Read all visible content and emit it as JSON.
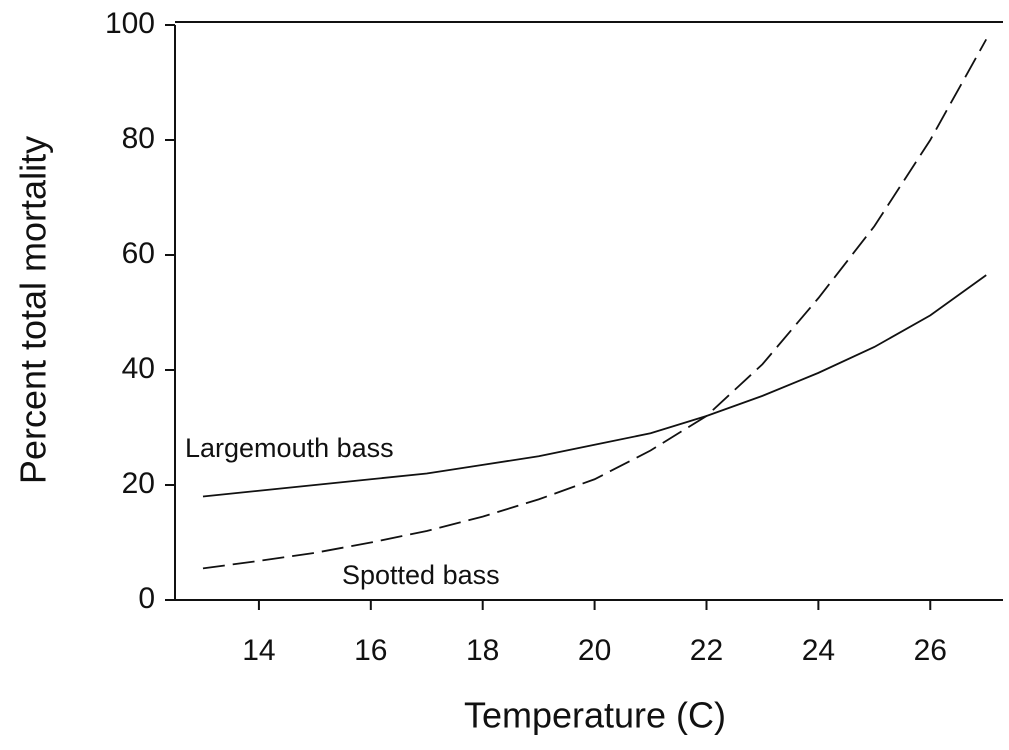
{
  "chart_data": {
    "type": "line",
    "xlabel": "Temperature (C)",
    "ylabel": "Percent total mortality",
    "x": [
      13,
      14,
      15,
      16,
      17,
      18,
      19,
      20,
      21,
      22,
      23,
      24,
      25,
      26,
      27
    ],
    "series": [
      {
        "name": "Largemouth bass",
        "color": "#111111",
        "style": "solid",
        "values": [
          18,
          19,
          20,
          21,
          22,
          23.5,
          25,
          27,
          29,
          32,
          35.5,
          39.5,
          44,
          49.5,
          56.5
        ]
      },
      {
        "name": "Spotted bass",
        "color": "#111111",
        "style": "dashed",
        "values": [
          5.5,
          6.8,
          8.2,
          10,
          12,
          14.5,
          17.5,
          21,
          26,
          32,
          41,
          52.5,
          65,
          80,
          97.5
        ]
      }
    ],
    "xlim": [
      12.5,
      27.3
    ],
    "ylim": [
      0,
      100
    ],
    "xticks": [
      14,
      16,
      18,
      20,
      22,
      24,
      26
    ],
    "yticks": [
      0,
      20,
      40,
      60,
      80,
      100
    ]
  }
}
